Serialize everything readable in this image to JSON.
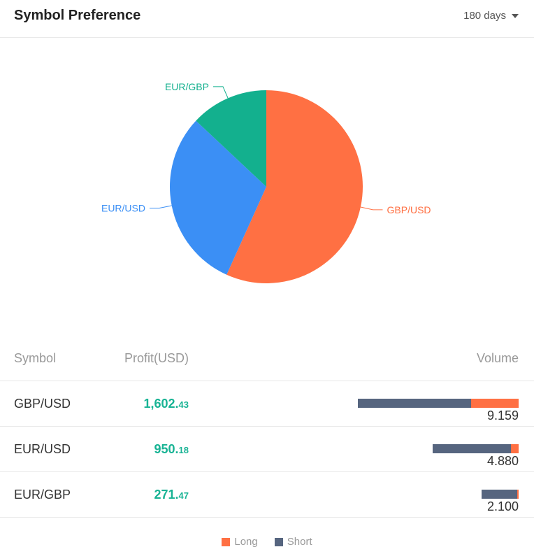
{
  "header": {
    "title": "Symbol Preference",
    "period": "180 days"
  },
  "chart_data": {
    "type": "pie",
    "categories": [
      "GBP/USD",
      "EUR/USD",
      "EUR/GBP"
    ],
    "values": [
      9.159,
      4.88,
      2.1
    ],
    "colors": [
      "#ff7043",
      "#3b8ff5",
      "#13b08e"
    ]
  },
  "table": {
    "columns": {
      "symbol": "Symbol",
      "profit": "Profit(USD)",
      "volume": "Volume"
    },
    "rows": [
      {
        "symbol": "GBP/USD",
        "profit_int": "1,602.",
        "profit_dec": "43",
        "volume": "9.159",
        "short": 6.45,
        "long": 2.709
      },
      {
        "symbol": "EUR/USD",
        "profit_int": "950.",
        "profit_dec": "18",
        "volume": "4.880",
        "short": 4.45,
        "long": 0.43
      },
      {
        "symbol": "EUR/GBP",
        "profit_int": "271.",
        "profit_dec": "47",
        "volume": "2.100",
        "short": 2.0,
        "long": 0.1
      }
    ]
  },
  "legend": {
    "long": "Long",
    "short": "Short",
    "long_color": "#ff7043",
    "short_color": "#56657f"
  }
}
